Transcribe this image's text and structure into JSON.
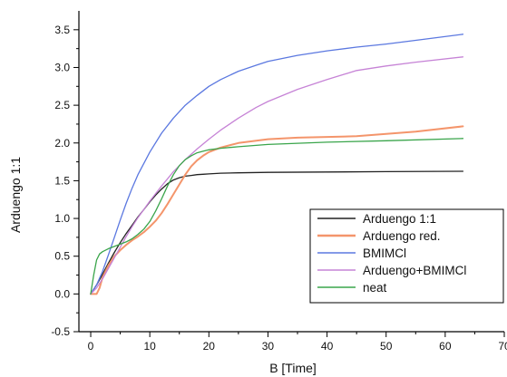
{
  "chart_data": {
    "type": "line",
    "title": "",
    "xlabel": "B [Time]",
    "ylabel": "Arduengo 1:1",
    "xlim": [
      -2,
      70
    ],
    "ylim": [
      -0.5,
      3.75
    ],
    "xticks": [
      0,
      10,
      20,
      30,
      40,
      50,
      60,
      70
    ],
    "yticks": [
      -0.5,
      0.0,
      0.5,
      1.0,
      1.5,
      2.0,
      2.5,
      3.0,
      3.5
    ],
    "ytick_labels": [
      "-0.5",
      "0.0",
      "0.5",
      "1.0",
      "1.5",
      "2.0",
      "2.5",
      "3.0",
      "3.5"
    ],
    "grid": false,
    "legend_position": "bottom-right",
    "series": [
      {
        "name": "Arduengo 1:1",
        "color": "#222222",
        "x": [
          0,
          1,
          2,
          3,
          4,
          5,
          6,
          7,
          8,
          9,
          10,
          11,
          12,
          13,
          14,
          15,
          16,
          17,
          18,
          19,
          20,
          22,
          25,
          30,
          40,
          50,
          63
        ],
        "y": [
          0.0,
          0.12,
          0.26,
          0.41,
          0.55,
          0.68,
          0.8,
          0.91,
          1.02,
          1.12,
          1.22,
          1.31,
          1.39,
          1.46,
          1.51,
          1.54,
          1.56,
          1.57,
          1.58,
          1.585,
          1.59,
          1.6,
          1.605,
          1.61,
          1.615,
          1.62,
          1.625
        ]
      },
      {
        "name": "Arduengo red.",
        "color": "#f4956b",
        "x": [
          0,
          1,
          1.5,
          2,
          3,
          4,
          5,
          6,
          7,
          8,
          9,
          10,
          11,
          12,
          13,
          14,
          15,
          16,
          17,
          18,
          19,
          20,
          22,
          25,
          30,
          35,
          40,
          45,
          50,
          55,
          63
        ],
        "y": [
          0.0,
          0.0,
          0.08,
          0.22,
          0.38,
          0.5,
          0.58,
          0.65,
          0.71,
          0.76,
          0.82,
          0.89,
          0.97,
          1.07,
          1.19,
          1.32,
          1.45,
          1.58,
          1.69,
          1.77,
          1.83,
          1.88,
          1.94,
          2.0,
          2.05,
          2.07,
          2.08,
          2.09,
          2.12,
          2.15,
          2.22
        ]
      },
      {
        "name": "BMIMCl",
        "color": "#5b78e0",
        "x": [
          0,
          1,
          2,
          3,
          4,
          5,
          6,
          7,
          8,
          10,
          12,
          14,
          16,
          18,
          20,
          22,
          25,
          28,
          30,
          35,
          40,
          45,
          50,
          55,
          63
        ],
        "y": [
          0.0,
          0.12,
          0.3,
          0.52,
          0.75,
          0.98,
          1.2,
          1.4,
          1.58,
          1.88,
          2.13,
          2.33,
          2.5,
          2.63,
          2.75,
          2.84,
          2.95,
          3.03,
          3.08,
          3.16,
          3.22,
          3.27,
          3.31,
          3.36,
          3.44
        ]
      },
      {
        "name": "Arduengo+BMIMCl",
        "color": "#c683d6",
        "x": [
          0,
          1,
          2,
          3,
          4,
          5,
          6,
          7,
          8,
          10,
          12,
          14,
          16,
          18,
          20,
          22,
          25,
          28,
          30,
          35,
          40,
          45,
          50,
          55,
          63
        ],
        "y": [
          0.0,
          0.08,
          0.2,
          0.34,
          0.48,
          0.62,
          0.76,
          0.89,
          1.01,
          1.23,
          1.43,
          1.62,
          1.78,
          1.92,
          2.05,
          2.17,
          2.33,
          2.47,
          2.55,
          2.71,
          2.84,
          2.96,
          3.02,
          3.07,
          3.14
        ]
      },
      {
        "name": "neat",
        "color": "#3aa54b",
        "x": [
          0,
          0.5,
          1,
          1.5,
          2,
          3,
          4,
          5,
          6,
          7,
          8,
          9,
          10,
          11,
          12,
          13,
          14,
          15,
          16,
          17,
          18,
          19,
          20,
          22,
          25,
          30,
          40,
          50,
          63
        ],
        "y": [
          0.0,
          0.25,
          0.45,
          0.53,
          0.56,
          0.6,
          0.63,
          0.66,
          0.69,
          0.73,
          0.79,
          0.86,
          0.96,
          1.1,
          1.26,
          1.43,
          1.58,
          1.7,
          1.78,
          1.83,
          1.87,
          1.89,
          1.91,
          1.93,
          1.95,
          1.98,
          2.01,
          2.03,
          2.06
        ]
      }
    ]
  }
}
